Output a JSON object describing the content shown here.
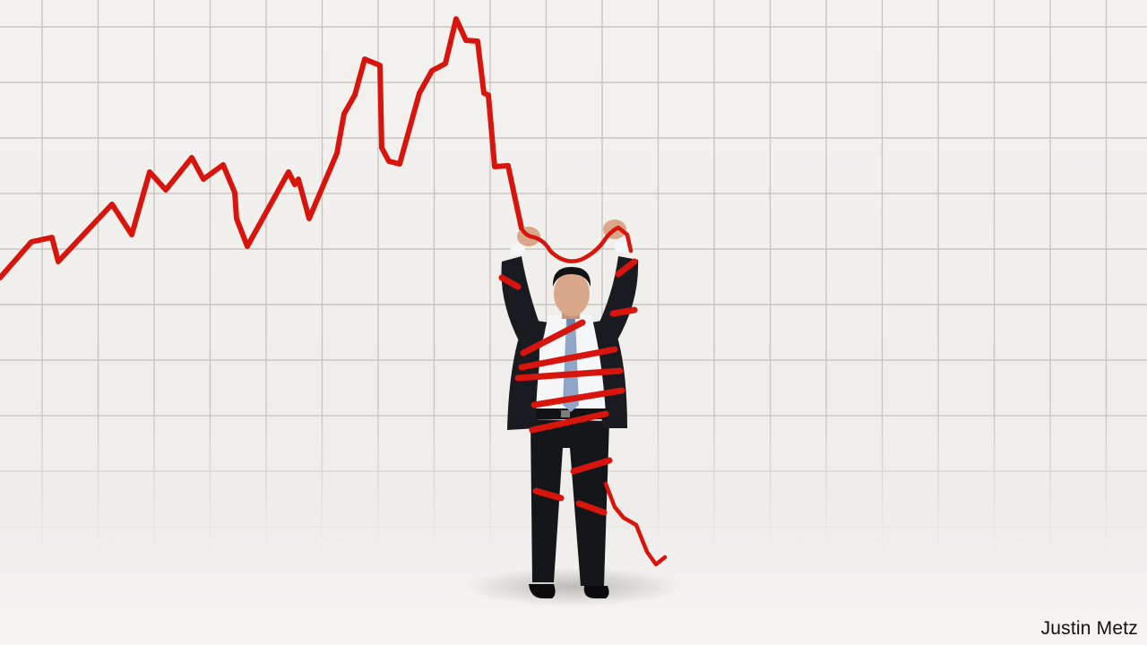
{
  "image": {
    "credit": "Justin Metz"
  },
  "colors": {
    "background": "#f3f1ee",
    "grid": "#c9c6c2",
    "chart_line": "#d7150c",
    "suit": "#15161a",
    "shirt": "#f4f6f8",
    "tie": "#8fa6c8",
    "skin": "#d9a88a"
  },
  "icons": {
    "figure": "man-in-suit-wrapped-in-red-ribbon",
    "chart": "falling-line-chart"
  }
}
